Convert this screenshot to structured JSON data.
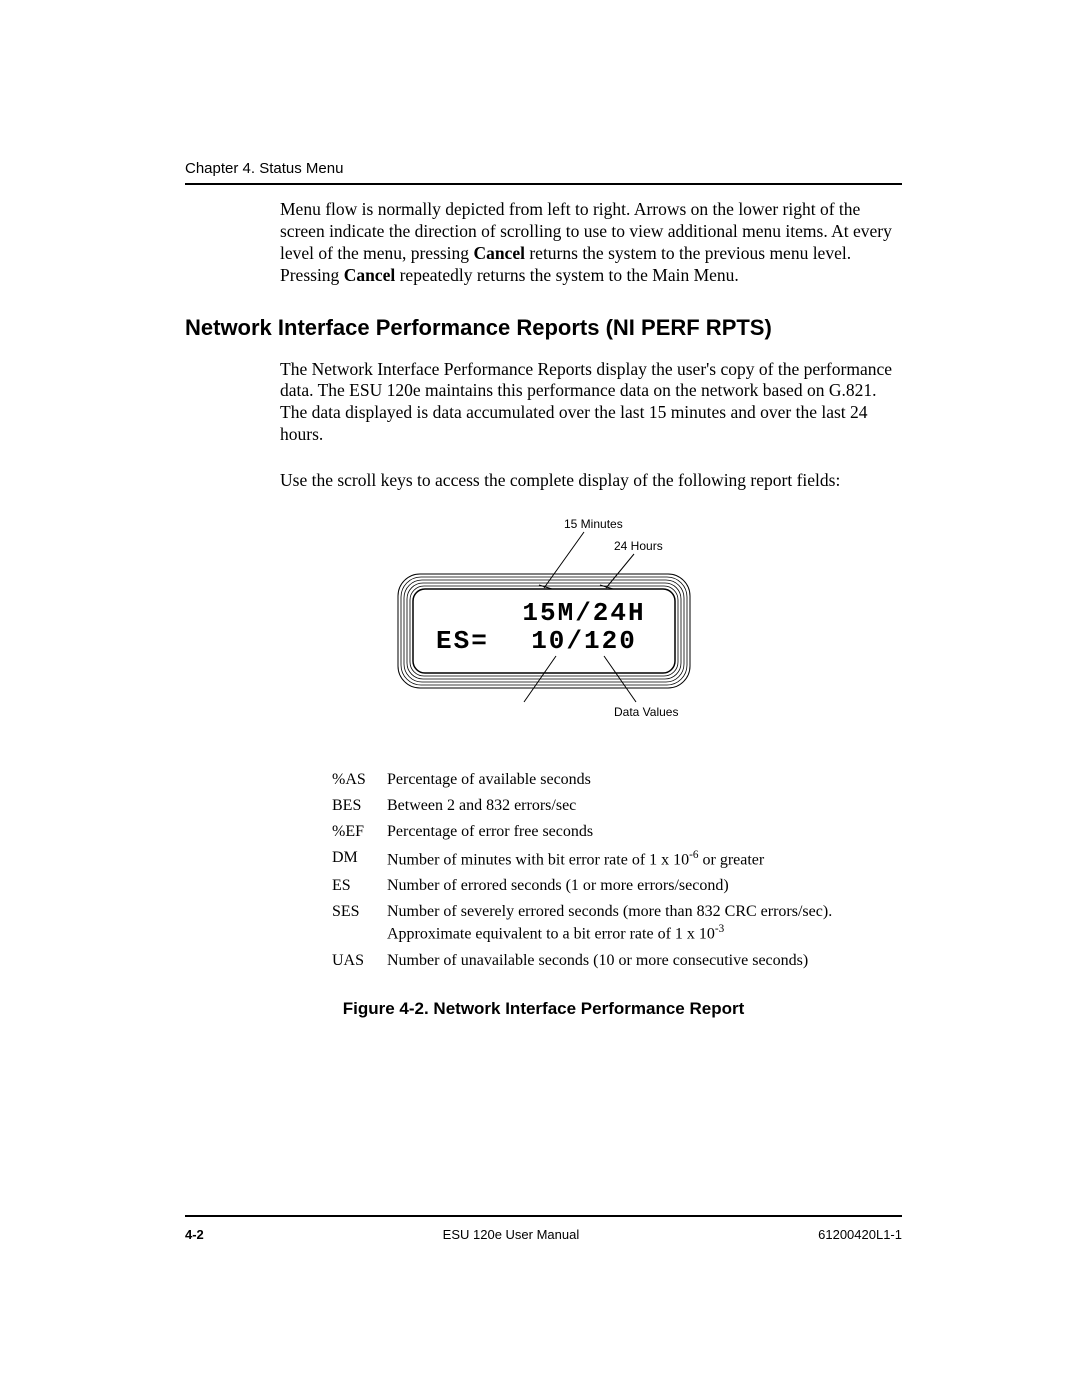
{
  "header": {
    "chapter": "Chapter 4. Status Menu"
  },
  "para1_parts": {
    "a": "Menu flow is normally depicted from left to right.  Arrows on the lower right of the screen indicate the direction of scrolling to use to view additional menu items.  At every level of the menu, pressing ",
    "b1": "Cancel",
    "c": " returns the system to the previous menu level.  Pressing ",
    "b2": "Cancel",
    "d": " repeatedly returns the system to the Main Menu."
  },
  "section_title": "Network Interface Performance Reports (NI PERF RPTS)",
  "para2": "The Network Interface Performance Reports display the user's copy of the performance data.  The ESU 120e maintains this performance data on the network based on G.821. The data displayed is data accumulated over the last 15 minutes and over the last 24 hours.",
  "para3": "Use the scroll keys to access the complete display of the following report fields:",
  "lcd": {
    "label_15min": "15 Minutes",
    "label_24h": "24 Hours",
    "label_data": "Data Values",
    "line1": "15M/24H",
    "line2a": "ES=",
    "line2b": "10/120"
  },
  "fields": [
    {
      "key": "%AS",
      "desc": "Percentage of available seconds"
    },
    {
      "key": "BES",
      "desc": "Between 2 and 832 errors/sec"
    },
    {
      "key": "%EF",
      "desc": "Percentage of error free seconds"
    },
    {
      "key": "DM",
      "desc": "Number of minutes with bit error rate of 1 x 10",
      "sup": "-6",
      "desc2": " or greater"
    },
    {
      "key": "ES",
      "desc": "Number of errored seconds (1 or more errors/second)"
    },
    {
      "key": "SES",
      "desc": "Number of severely errored seconds (more than 832 CRC errors/sec).  Approximate equivalent to a bit error rate of 1 x 10",
      "sup": "-3"
    },
    {
      "key": "UAS",
      "desc": "Number of unavailable seconds (10 or more consecutive seconds)"
    }
  ],
  "figure_caption": "Figure 4-2.  Network Interface Performance Report",
  "footer": {
    "pageno": "4-2",
    "manual": "ESU 120e User Manual",
    "docnum": "61200420L1-1"
  },
  "colors": {
    "text": "#000000",
    "background": "#ffffff"
  }
}
